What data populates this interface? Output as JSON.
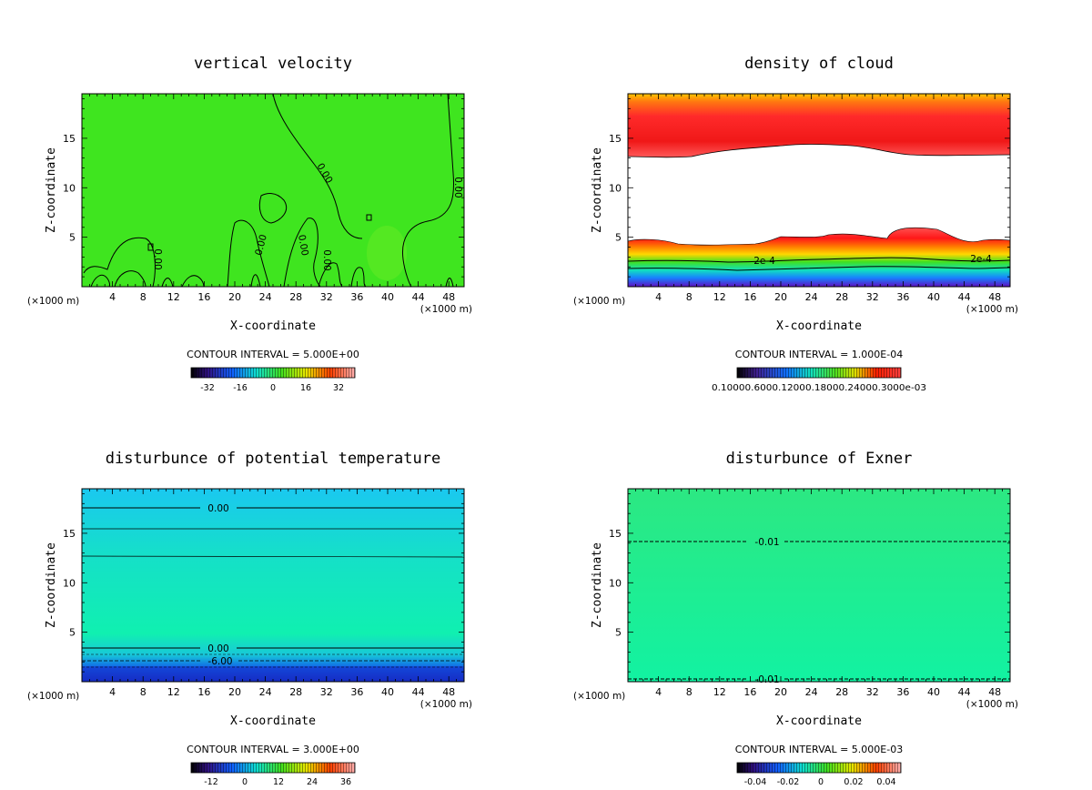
{
  "chart_data": [
    {
      "type": "heatmap",
      "title": "vertical velocity",
      "xlabel": "X-coordinate",
      "ylabel": "Z-coordinate",
      "x_unit": "(×1000 m)",
      "xlim": [
        0,
        50
      ],
      "ylim": [
        0,
        19.5
      ],
      "x_ticks": [
        4,
        8,
        12,
        16,
        20,
        24,
        28,
        32,
        36,
        40,
        44,
        48
      ],
      "y_ticks": [
        5,
        10,
        15
      ],
      "contour_interval": "CONTOUR INTERVAL = 5.000E+00",
      "colorbar_ticks": [
        "-32",
        "-16",
        "0",
        "16",
        "32"
      ],
      "contour_labels": [
        "0.00",
        "0.00",
        "0.00",
        "0.00",
        "0.00",
        "0.00"
      ],
      "fill_color": "#3fe51f"
    },
    {
      "type": "heatmap",
      "title": "density of cloud",
      "xlabel": "X-coordinate",
      "ylabel": "Z-coordinate",
      "x_unit": "(×1000 m)",
      "xlim": [
        0,
        50
      ],
      "ylim": [
        0,
        19.5
      ],
      "x_ticks": [
        4,
        8,
        12,
        16,
        20,
        24,
        28,
        32,
        36,
        40,
        44,
        48
      ],
      "y_ticks": [
        5,
        10,
        15
      ],
      "contour_interval": "CONTOUR INTERVAL = 1.000E-04",
      "colorbar_ticks_text": "0.10000.6000.12000.18000.24000.3000e-03",
      "contour_labels": [
        "2e-4",
        "2e-4"
      ]
    },
    {
      "type": "heatmap",
      "title": "disturbunce of potential temperature",
      "xlabel": "X-coordinate",
      "ylabel": "Z-coordinate",
      "x_unit": "(×1000 m)",
      "xlim": [
        0,
        50
      ],
      "ylim": [
        0,
        19.5
      ],
      "x_ticks": [
        4,
        8,
        12,
        16,
        20,
        24,
        28,
        32,
        36,
        40,
        44,
        48
      ],
      "y_ticks": [
        5,
        10,
        15
      ],
      "contour_interval": "CONTOUR INTERVAL = 3.000E+00",
      "colorbar_ticks": [
        "-12",
        "0",
        "12",
        "24",
        "36"
      ],
      "contour_labels": [
        "0.00",
        "0.00",
        "-6.00"
      ]
    },
    {
      "type": "heatmap",
      "title": "disturbunce of Exner",
      "xlabel": "X-coordinate",
      "ylabel": "Z-coordinate",
      "x_unit": "(×1000 m)",
      "xlim": [
        0,
        50
      ],
      "ylim": [
        0,
        19.5
      ],
      "x_ticks": [
        4,
        8,
        12,
        16,
        20,
        24,
        28,
        32,
        36,
        40,
        44,
        48
      ],
      "y_ticks": [
        5,
        10,
        15
      ],
      "contour_interval": "CONTOUR INTERVAL = 5.000E-03",
      "colorbar_ticks": [
        "-0.04",
        "-0.02",
        "0",
        "0.02",
        "0.04"
      ],
      "contour_labels": [
        "-0.01",
        "-0.01"
      ]
    }
  ]
}
